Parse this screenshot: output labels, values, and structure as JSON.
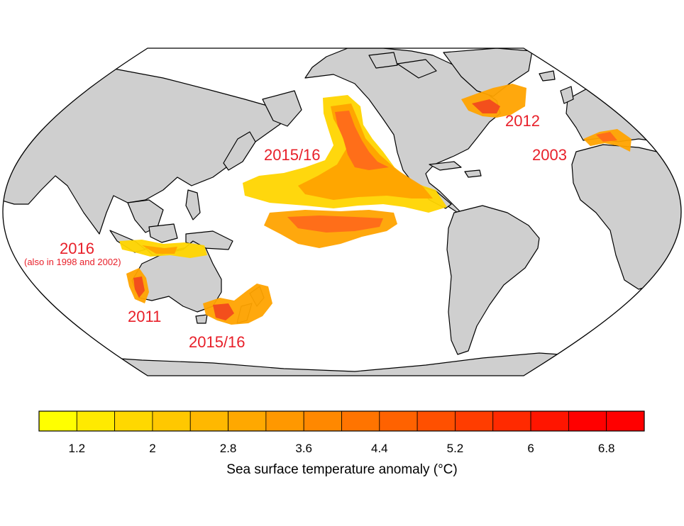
{
  "map": {
    "projection": "Robinson",
    "center": "Pacific",
    "land_color": "#cfcfcf",
    "ocean_color": "#ffffff",
    "coast_color": "#000000"
  },
  "events": [
    {
      "id": "nepacific",
      "label": "2015/16",
      "region": "North-east Pacific"
    },
    {
      "id": "nwatlantic",
      "label": "2012",
      "region": "North-west Atlantic"
    },
    {
      "id": "mediterranean",
      "label": "2003",
      "region": "Mediterranean Sea"
    },
    {
      "id": "northaus",
      "label": "2016",
      "note": "(also in 1998 and 2002)",
      "region": "Northern Australia"
    },
    {
      "id": "westaus",
      "label": "2011",
      "region": "Western Australia"
    },
    {
      "id": "tasman",
      "label": "2015/16",
      "region": "Tasman Sea"
    }
  ],
  "legend": {
    "title": "Sea surface temperature anomaly (°C)",
    "range": [
      0.8,
      7.2
    ],
    "step": 0.4,
    "tick_labels": [
      "1.2",
      "2",
      "2.8",
      "3.6",
      "4.4",
      "5.2",
      "6",
      "6.8"
    ],
    "tick_values": [
      1.2,
      2.0,
      2.8,
      3.6,
      4.4,
      5.2,
      6.0,
      6.8
    ],
    "colors": [
      "#ffff00",
      "#ffea00",
      "#ffd800",
      "#ffc800",
      "#ffb800",
      "#ffa800",
      "#ff9800",
      "#ff8800",
      "#ff7400",
      "#ff6200",
      "#ff5000",
      "#ff3d00",
      "#ff2a00",
      "#ff1500",
      "#ff0000",
      "#ff0000"
    ]
  },
  "colors": {
    "label_red": "#e8202a",
    "anomaly_low": "#ffd500",
    "anomaly_mid": "#ffa300",
    "anomaly_high": "#ff6a1a",
    "anomaly_peak": "#f24a1e"
  }
}
